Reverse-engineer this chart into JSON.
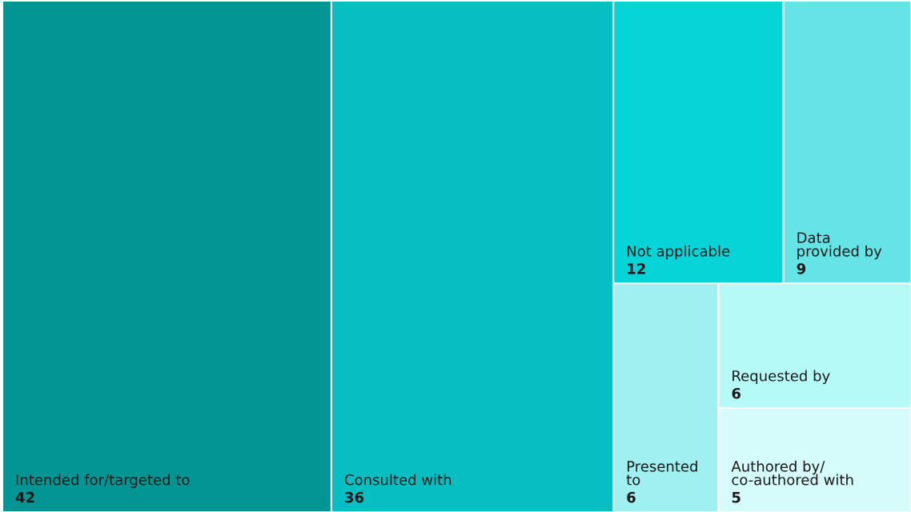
{
  "chart_data": {
    "type": "other",
    "categories": [
      "Intended for/targeted to",
      "Consulted with",
      "Not applicable",
      "Data\nprovided by",
      "Presented\nto",
      "Requested by",
      "Authored by/\nco-authored with"
    ],
    "values": [
      42,
      36,
      12,
      9,
      6,
      6,
      5
    ],
    "colors": [
      "#039494",
      "#07bfc2",
      "#06d4d6",
      "#66e3e5",
      "#9ff0f0",
      "#b5faf6",
      "#d5fcfa"
    ],
    "data_labels": true
  }
}
